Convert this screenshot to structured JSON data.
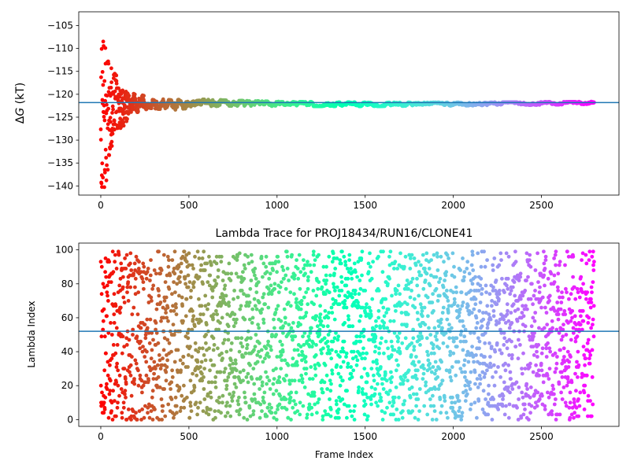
{
  "chart_data": [
    {
      "type": "scatter",
      "title": "",
      "xlabel": "",
      "ylabel": "ΔG (kT)",
      "ylabel_symbol": "Δ",
      "ylabel_var": "G",
      "ylabel_unit": " (kT)",
      "xlim": [
        -125,
        2940
      ],
      "ylim": [
        -142,
        -102
      ],
      "xticks": [
        0,
        500,
        1000,
        1500,
        2000,
        2500
      ],
      "xtick_labels": [
        "0",
        "500",
        "1000",
        "1500",
        "2000",
        "2500"
      ],
      "yticks": [
        -140,
        -135,
        -130,
        -125,
        -120,
        -115,
        -110,
        -105
      ],
      "ytick_labels": [
        "−140",
        "−135",
        "−130",
        "−125",
        "−120",
        "−115",
        "−110",
        "−105"
      ],
      "reference_line": -121.8,
      "colormap": "rainbow (red at early frames to violet at late frames)",
      "grid": false,
      "legend": "none",
      "n_points": 2800,
      "envelope": [
        [
          0,
          -140,
          -107.5
        ],
        [
          20,
          -141,
          -108
        ],
        [
          40,
          -141,
          -112
        ],
        [
          60,
          -132,
          -114
        ],
        [
          80,
          -129,
          -115
        ],
        [
          100,
          -128,
          -117
        ],
        [
          130,
          -127,
          -119
        ],
        [
          160,
          -125,
          -119.5
        ],
        [
          200,
          -124,
          -120
        ],
        [
          280,
          -123,
          -120.5
        ],
        [
          400,
          -123.5,
          -121.3
        ],
        [
          500,
          -123,
          -121
        ],
        [
          700,
          -122.5,
          -121.3
        ],
        [
          1000,
          -122.6,
          -121.6
        ],
        [
          1500,
          -122.6,
          -121.8
        ],
        [
          2000,
          -122.5,
          -121.8
        ],
        [
          2500,
          -122.3,
          -121.7
        ],
        [
          2800,
          -122.1,
          -121.6
        ]
      ]
    },
    {
      "type": "scatter",
      "title": "Lambda Trace for PROJ18434/RUN16/CLONE41",
      "xlabel": "Frame Index",
      "ylabel": "Lambda Index",
      "xlim": [
        -125,
        2940
      ],
      "ylim": [
        -4,
        104
      ],
      "xticks": [
        0,
        500,
        1000,
        1500,
        2000,
        2500
      ],
      "xtick_labels": [
        "0",
        "500",
        "1000",
        "1500",
        "2000",
        "2500"
      ],
      "yticks": [
        0,
        20,
        40,
        60,
        80,
        100
      ],
      "ytick_labels": [
        "0",
        "20",
        "40",
        "60",
        "80",
        "100"
      ],
      "reference_line": 52,
      "lambda_range": [
        0,
        99
      ],
      "colormap": "rainbow (red at early frames to violet at late frames)",
      "grid": false,
      "legend": "none",
      "n_points": 2800
    }
  ]
}
